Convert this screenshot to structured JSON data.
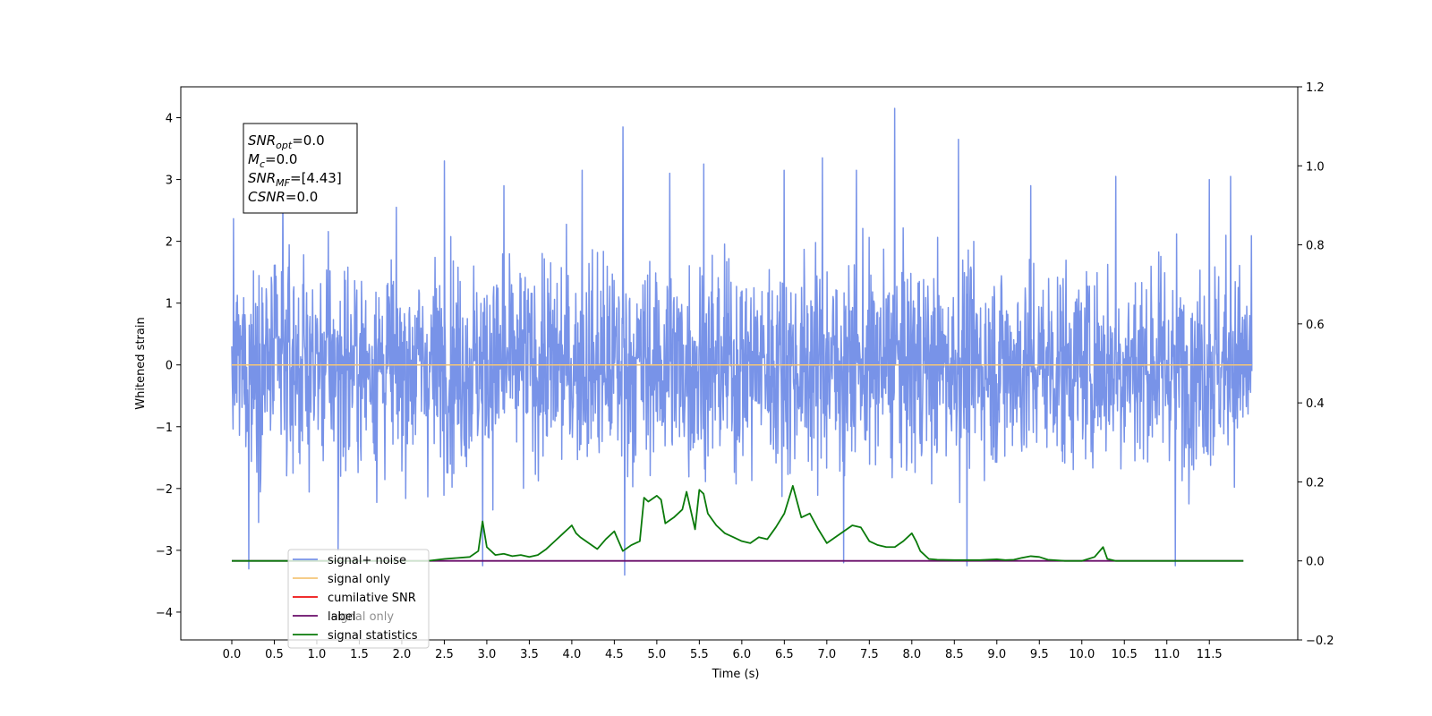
{
  "chart_data": {
    "type": "line",
    "xlabel": "Time (s)",
    "ylabel": "Whitened strain",
    "xlim": [
      -0.6,
      12.54
    ],
    "ylim": [
      -4.45,
      4.5
    ],
    "y2lim": [
      -0.2,
      1.2
    ],
    "x_ticks": [
      "0.0",
      "0.5",
      "1.0",
      "1.5",
      "2.0",
      "2.5",
      "3.0",
      "3.5",
      "4.0",
      "4.5",
      "5.0",
      "5.5",
      "6.0",
      "6.5",
      "7.0",
      "7.5",
      "8.0",
      "8.5",
      "9.0",
      "9.5",
      "10.0",
      "10.5",
      "11.0",
      "11.5"
    ],
    "y_ticks": [
      "−4",
      "−3",
      "−2",
      "−1",
      "0",
      "1",
      "2",
      "3",
      "4"
    ],
    "y2_ticks": [
      "−0.2",
      "0.0",
      "0.2",
      "0.4",
      "0.6",
      "0.8",
      "1.0",
      "1.2"
    ],
    "annotation": {
      "lines": [
        {
          "main": "SNR",
          "sub": "opt",
          "rest": "=0.0"
        },
        {
          "main": "M",
          "sub": "c",
          "rest": "=0.0"
        },
        {
          "main": "SNR",
          "sub": "MF",
          "rest": "=[4.43]"
        },
        {
          "main": "CSNR",
          "sub": "",
          "rest": "=0.0"
        }
      ]
    },
    "legend": {
      "placement": "lower-left",
      "entries": [
        {
          "name": "signal+ noise",
          "color": "#7893e8"
        },
        {
          "name": "signal only",
          "color": "#f5c678"
        },
        {
          "name": "cumilative SNR",
          "color": "#ee1111"
        },
        {
          "name": "label",
          "color": "#6a0d6a"
        },
        {
          "name": "signal statistics",
          "color": "#0a7a0a"
        }
      ],
      "hidden_text": "signal only"
    },
    "series": [
      {
        "name": "signal+ noise",
        "axis": "left",
        "x_range": [
          0.0,
          12.0
        ],
        "envelope_typical": 1.9,
        "spikes": [
          {
            "x": 0.2,
            "y": -3.3
          },
          {
            "x": 0.6,
            "y": 2.9
          },
          {
            "x": 1.25,
            "y": -3.0
          },
          {
            "x": 2.5,
            "y": 3.3
          },
          {
            "x": 2.95,
            "y": -3.25
          },
          {
            "x": 3.2,
            "y": 2.9
          },
          {
            "x": 4.12,
            "y": 3.15
          },
          {
            "x": 4.6,
            "y": 3.85
          },
          {
            "x": 4.62,
            "y": -3.4
          },
          {
            "x": 5.15,
            "y": 3.1
          },
          {
            "x": 5.55,
            "y": 3.25
          },
          {
            "x": 6.5,
            "y": 3.15
          },
          {
            "x": 6.95,
            "y": 3.35
          },
          {
            "x": 7.2,
            "y": -3.2
          },
          {
            "x": 7.35,
            "y": 3.15
          },
          {
            "x": 7.8,
            "y": 4.15
          },
          {
            "x": 8.55,
            "y": 3.65
          },
          {
            "x": 8.65,
            "y": -3.25
          },
          {
            "x": 9.4,
            "y": 2.9
          },
          {
            "x": 10.4,
            "y": 3.05
          },
          {
            "x": 11.1,
            "y": -3.25
          },
          {
            "x": 11.5,
            "y": 3.0
          },
          {
            "x": 11.75,
            "y": 3.05
          }
        ]
      },
      {
        "name": "signal only",
        "axis": "left",
        "x": [
          0.0,
          12.0
        ],
        "y": [
          0.0,
          0.0
        ]
      },
      {
        "name": "label",
        "axis": "right",
        "x": [
          0.0,
          11.9
        ],
        "y": [
          0.0,
          0.0
        ]
      },
      {
        "name": "signal statistics",
        "axis": "right",
        "x": [
          0.0,
          2.3,
          2.5,
          2.8,
          2.9,
          2.95,
          3.0,
          3.1,
          3.2,
          3.3,
          3.4,
          3.5,
          3.6,
          3.7,
          3.8,
          3.9,
          4.0,
          4.05,
          4.1,
          4.2,
          4.3,
          4.4,
          4.5,
          4.6,
          4.7,
          4.8,
          4.85,
          4.9,
          5.0,
          5.05,
          5.1,
          5.2,
          5.3,
          5.35,
          5.45,
          5.5,
          5.55,
          5.6,
          5.7,
          5.8,
          5.9,
          6.0,
          6.1,
          6.2,
          6.3,
          6.4,
          6.5,
          6.6,
          6.7,
          6.8,
          6.9,
          7.0,
          7.1,
          7.2,
          7.3,
          7.4,
          7.5,
          7.6,
          7.7,
          7.8,
          7.9,
          8.0,
          8.05,
          8.1,
          8.2,
          8.3,
          8.5,
          8.8,
          9.0,
          9.1,
          9.2,
          9.3,
          9.4,
          9.5,
          9.6,
          9.8,
          10.0,
          10.15,
          10.25,
          10.3,
          10.4,
          10.6,
          11.0,
          11.5,
          11.9
        ],
        "y": [
          0.0,
          0.0,
          0.005,
          0.01,
          0.025,
          0.1,
          0.035,
          0.015,
          0.018,
          0.012,
          0.015,
          0.01,
          0.015,
          0.03,
          0.05,
          0.07,
          0.09,
          0.07,
          0.06,
          0.045,
          0.03,
          0.055,
          0.075,
          0.025,
          0.04,
          0.05,
          0.16,
          0.15,
          0.165,
          0.155,
          0.095,
          0.11,
          0.13,
          0.175,
          0.08,
          0.18,
          0.17,
          0.12,
          0.09,
          0.07,
          0.06,
          0.05,
          0.045,
          0.06,
          0.055,
          0.085,
          0.12,
          0.19,
          0.11,
          0.12,
          0.08,
          0.045,
          0.06,
          0.075,
          0.09,
          0.085,
          0.05,
          0.04,
          0.035,
          0.035,
          0.05,
          0.07,
          0.05,
          0.025,
          0.005,
          0.003,
          0.002,
          0.002,
          0.004,
          0.002,
          0.003,
          0.008,
          0.012,
          0.01,
          0.003,
          0.0,
          0.0,
          0.01,
          0.035,
          0.005,
          0.0,
          0.0,
          0.0,
          0.0,
          0.0
        ]
      }
    ]
  }
}
